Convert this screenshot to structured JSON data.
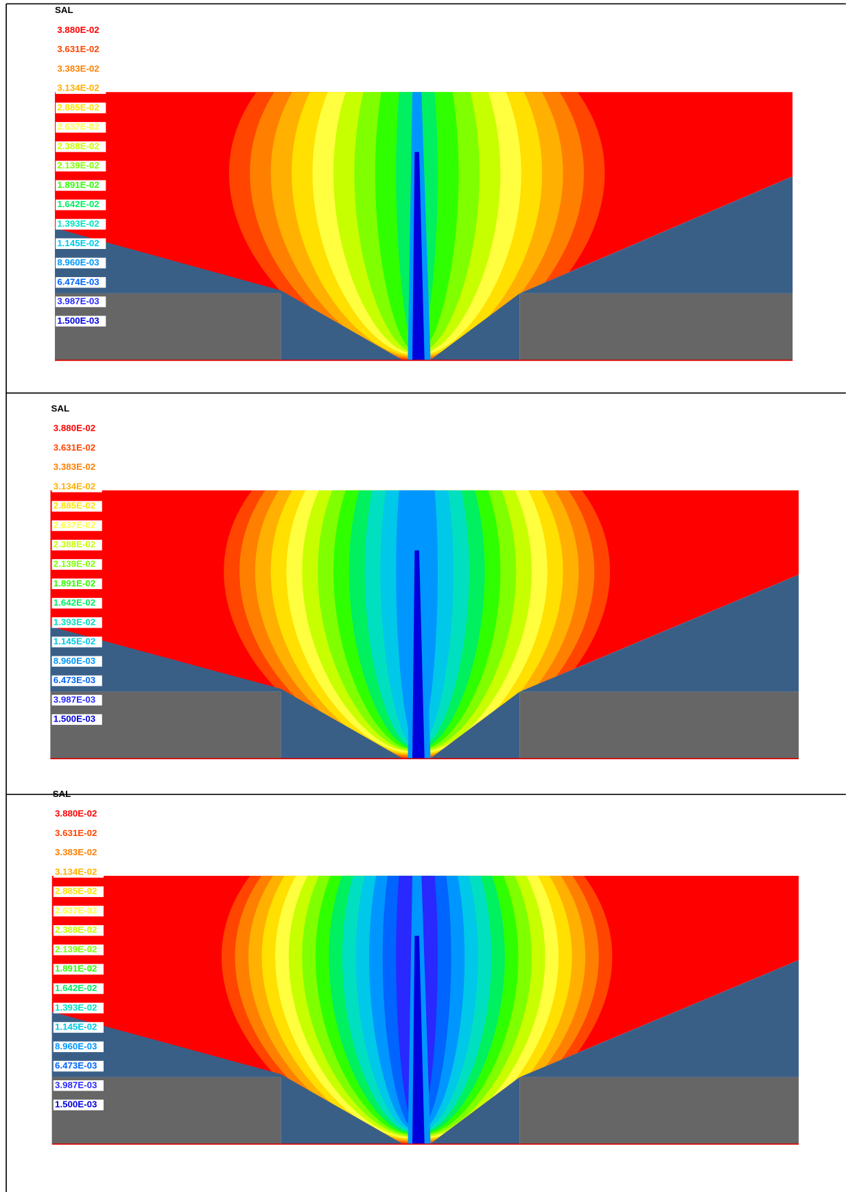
{
  "panels": [
    {
      "legend_title": "SAL",
      "legend": [
        "3.880E-02",
        "3.631E-02",
        "3.383E-02",
        "3.134E-02",
        "2.885E-02",
        "2.637E-02",
        "2.388E-02",
        "2.139E-02",
        "1.891E-02",
        "1.642E-02",
        "1.393E-02",
        "1.145E-02",
        "8.960E-03",
        "6.474E-03",
        "3.987E-03",
        "1.500E-03"
      ]
    },
    {
      "legend_title": "SAL",
      "legend": [
        "3.880E-02",
        "3.631E-02",
        "3.383E-02",
        "3.134E-02",
        "2.885E-02",
        "2.637E-02",
        "2.388E-02",
        "2.139E-02",
        "1.891E-02",
        "1.642E-02",
        "1.393E-02",
        "1.145E-02",
        "8.960E-03",
        "6.473E-03",
        "3.987E-03",
        "1.500E-03"
      ]
    },
    {
      "legend_title": "SAL",
      "legend": [
        "3.880E-02",
        "3.631E-02",
        "3.383E-02",
        "3.134E-02",
        "2.885E-02",
        "2.637E-02",
        "2.388E-02",
        "2.139E-02",
        "1.891E-02",
        "1.642E-02",
        "1.393E-02",
        "1.145E-02",
        "8.960E-03",
        "6.473E-03",
        "3.987E-03",
        "1.500E-03"
      ]
    }
  ]
}
